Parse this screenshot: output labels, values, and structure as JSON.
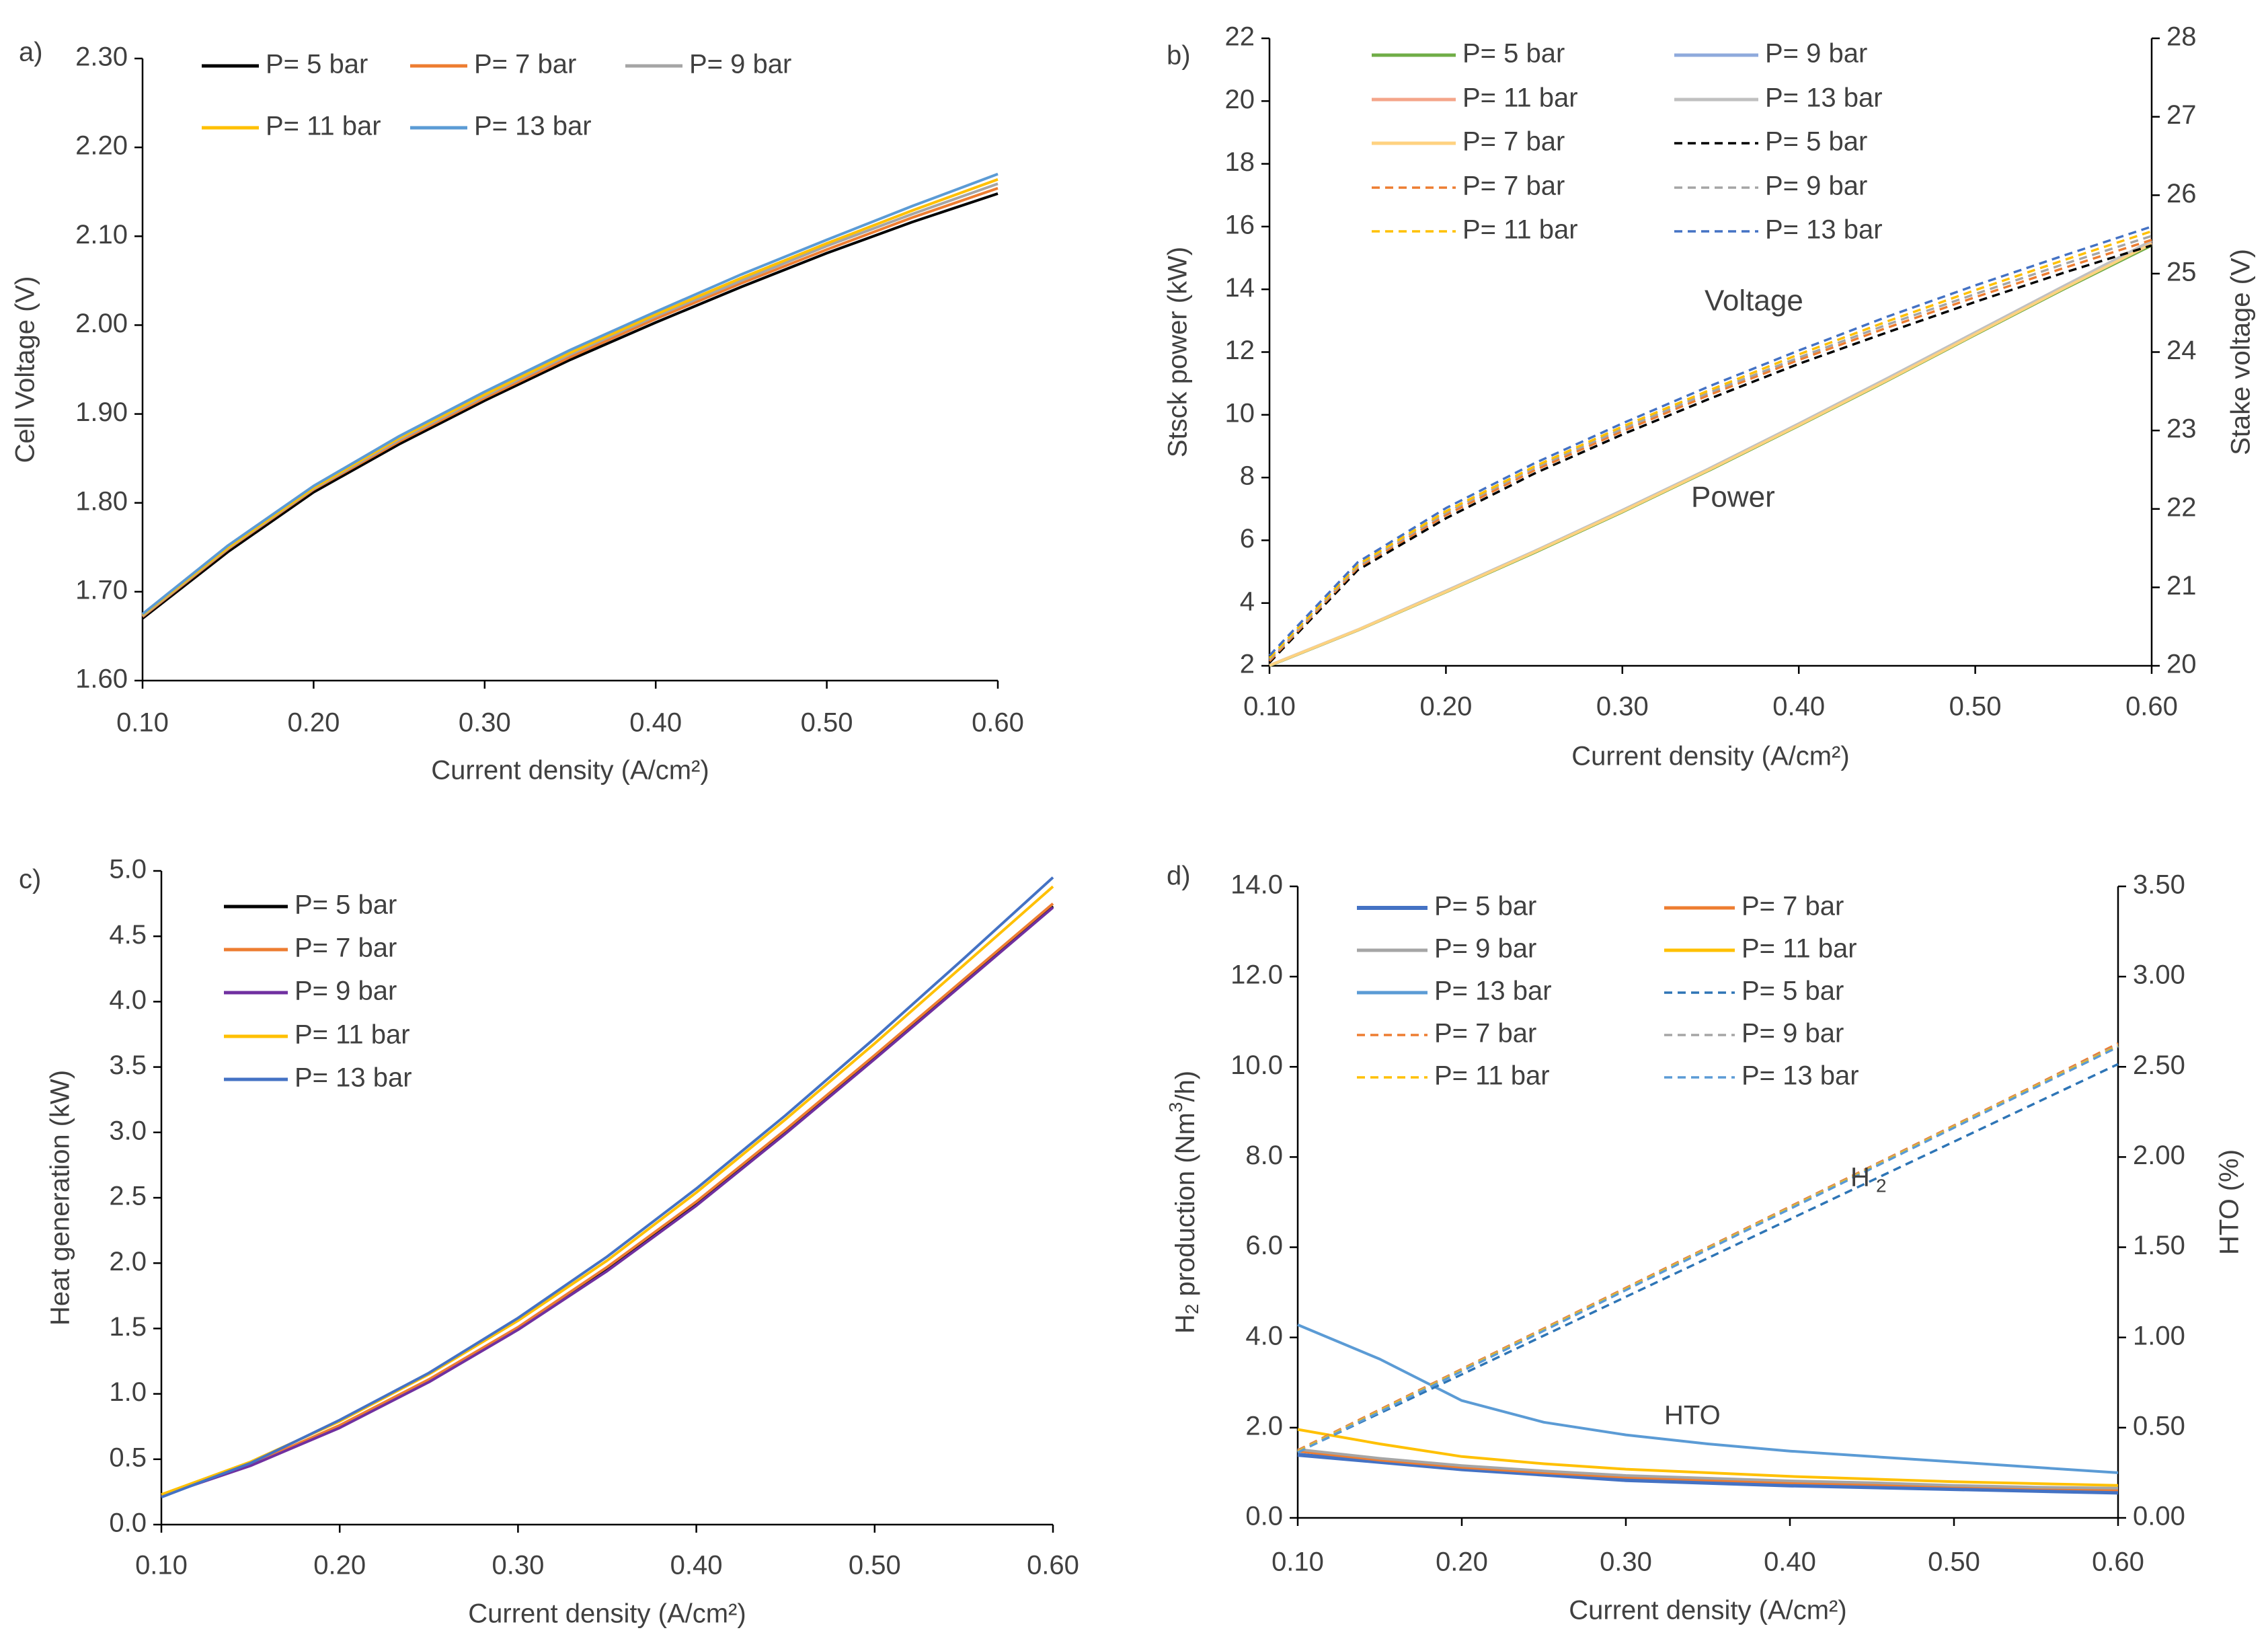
{
  "chart_data": [
    {
      "panel": "a)",
      "type": "line",
      "xlabel": "Current density (A/cm²)",
      "ylabel": "Cell Voltage (V)",
      "xlim": [
        0.1,
        0.6
      ],
      "ylim": [
        1.6,
        2.3
      ],
      "x_ticks": [
        "0.10",
        "0.20",
        "0.30",
        "0.40",
        "0.50",
        "0.60"
      ],
      "y_ticks": [
        "1.60",
        "1.70",
        "1.80",
        "1.90",
        "2.00",
        "2.10",
        "2.20",
        "2.30"
      ],
      "x": [
        0.1,
        0.15,
        0.2,
        0.25,
        0.3,
        0.35,
        0.4,
        0.45,
        0.5,
        0.55,
        0.6
      ],
      "series": [
        {
          "name": "P= 5 bar",
          "color": "#000000",
          "dash": "solid",
          "values": [
            1.67,
            1.745,
            1.812,
            1.866,
            1.915,
            1.961,
            2.003,
            2.043,
            2.081,
            2.116,
            2.148
          ]
        },
        {
          "name": "P= 7 bar",
          "color": "#ed7d31",
          "dash": "solid",
          "values": [
            1.672,
            1.748,
            1.815,
            1.869,
            1.918,
            1.964,
            2.007,
            2.047,
            2.085,
            2.121,
            2.154
          ]
        },
        {
          "name": "P= 9 bar",
          "color": "#a5a5a5",
          "dash": "solid",
          "values": [
            1.673,
            1.749,
            1.816,
            1.871,
            1.92,
            1.967,
            2.01,
            2.05,
            2.089,
            2.125,
            2.159
          ]
        },
        {
          "name": "P=  11 bar",
          "color": "#ffc000",
          "dash": "solid",
          "values": [
            1.674,
            1.75,
            1.817,
            1.873,
            1.922,
            1.969,
            2.012,
            2.053,
            2.092,
            2.129,
            2.164
          ]
        },
        {
          "name": "P= 13 bar",
          "color": "#5b9bd5",
          "dash": "solid",
          "values": [
            1.675,
            1.752,
            1.819,
            1.875,
            1.925,
            1.972,
            2.015,
            2.057,
            2.096,
            2.134,
            2.17
          ]
        }
      ]
    },
    {
      "panel": "b)",
      "type": "line",
      "xlabel": "Current density (A/cm²)",
      "ylabel": "Stsck power (kW)",
      "ylabel_right": "Stake voltage (V)",
      "xlim": [
        0.1,
        0.6
      ],
      "ylim": [
        2,
        22
      ],
      "ylim_right": [
        20,
        28
      ],
      "x_ticks": [
        "0.10",
        "0.20",
        "0.30",
        "0.40",
        "0.50",
        "0.60"
      ],
      "y_ticks": [
        "2",
        "4",
        "6",
        "8",
        "10",
        "12",
        "14",
        "16",
        "18",
        "20",
        "22"
      ],
      "y_ticks_right": [
        "20",
        "21",
        "22",
        "23",
        "24",
        "25",
        "26",
        "27",
        "28"
      ],
      "annotations": [
        "Voltage",
        "Power"
      ],
      "x": [
        0.1,
        0.15,
        0.2,
        0.25,
        0.3,
        0.35,
        0.4,
        0.45,
        0.5,
        0.55,
        0.6
      ],
      "series": [
        {
          "name": "P= 5 bar",
          "color": "#70ad47",
          "dash": "solid",
          "axis": "left",
          "values": [
            2.0,
            3.13,
            4.35,
            5.6,
            6.9,
            8.25,
            9.65,
            11.08,
            12.55,
            14.0,
            15.4
          ]
        },
        {
          "name": "P= 9 bar",
          "color": "#8faadc",
          "dash": "solid",
          "axis": "left",
          "values": [
            2.01,
            3.14,
            4.37,
            5.63,
            6.93,
            8.28,
            9.68,
            11.12,
            12.58,
            14.05,
            15.48
          ]
        },
        {
          "name": "P=  11 bar",
          "color": "#f4a58a",
          "dash": "solid",
          "axis": "left",
          "values": [
            2.01,
            3.14,
            4.37,
            5.63,
            6.94,
            8.29,
            9.69,
            11.13,
            12.6,
            14.07,
            15.5
          ]
        },
        {
          "name": "P= 13 bar",
          "color": "#c0c0c0",
          "dash": "solid",
          "axis": "left",
          "values": [
            2.02,
            3.15,
            4.39,
            5.65,
            6.96,
            8.31,
            9.72,
            11.16,
            12.63,
            14.1,
            15.55
          ]
        },
        {
          "name": "P= 7 bar",
          "color": "#ffd280",
          "dash": "solid",
          "axis": "left",
          "values": [
            2.01,
            3.14,
            4.36,
            5.62,
            6.92,
            8.27,
            9.67,
            11.1,
            12.57,
            14.03,
            15.45
          ]
        },
        {
          "name": "P= 5 bar",
          "color": "#000000",
          "dash": "dashed",
          "axis": "right",
          "values": [
            20.04,
            21.22,
            21.88,
            22.45,
            22.95,
            23.41,
            23.85,
            24.25,
            24.64,
            25.01,
            25.36
          ]
        },
        {
          "name": "P= 7 bar",
          "color": "#ed7d31",
          "dash": "dashed",
          "axis": "right",
          "values": [
            20.06,
            21.25,
            21.92,
            22.49,
            22.99,
            23.46,
            23.9,
            24.31,
            24.7,
            25.07,
            25.43
          ]
        },
        {
          "name": "P= 9 bar",
          "color": "#a5a5a5",
          "dash": "dashed",
          "axis": "right",
          "values": [
            20.08,
            21.27,
            21.95,
            22.52,
            23.02,
            23.49,
            23.93,
            24.35,
            24.74,
            25.12,
            25.48
          ]
        },
        {
          "name": "P=  11 bar",
          "color": "#ffc000",
          "dash": "dashed",
          "axis": "right",
          "values": [
            20.1,
            21.29,
            21.97,
            22.54,
            23.05,
            23.52,
            23.97,
            24.39,
            24.79,
            25.17,
            25.54
          ]
        },
        {
          "name": "P= 13 bar",
          "color": "#4472c4",
          "dash": "dashed",
          "axis": "right",
          "values": [
            20.13,
            21.32,
            22.01,
            22.58,
            23.09,
            23.57,
            24.02,
            24.45,
            24.85,
            25.23,
            25.6
          ]
        }
      ]
    },
    {
      "panel": "c)",
      "type": "line",
      "xlabel": "Current density (A/cm²)",
      "ylabel": "Heat generation  (kW)",
      "xlim": [
        0.1,
        0.6
      ],
      "ylim": [
        0.0,
        5.0
      ],
      "x_ticks": [
        "0.10",
        "0.20",
        "0.30",
        "0.40",
        "0.50",
        "0.60"
      ],
      "y_ticks": [
        "0.0",
        "0.5",
        "1.0",
        "1.5",
        "2.0",
        "2.5",
        "3.0",
        "3.5",
        "4.0",
        "4.5",
        "5.0"
      ],
      "x": [
        0.1,
        0.15,
        0.2,
        0.25,
        0.3,
        0.35,
        0.4,
        0.45,
        0.5,
        0.55,
        0.6
      ],
      "series": [
        {
          "name": "P= 5 bar",
          "color": "#000000",
          "dash": "solid",
          "values": [
            0.22,
            0.46,
            0.75,
            1.1,
            1.5,
            1.96,
            2.46,
            3.01,
            3.58,
            4.16,
            4.73
          ]
        },
        {
          "name": "P= 7 bar",
          "color": "#ed7d31",
          "dash": "solid",
          "values": [
            0.22,
            0.46,
            0.76,
            1.11,
            1.51,
            1.97,
            2.47,
            3.02,
            3.59,
            4.17,
            4.75
          ]
        },
        {
          "name": "P= 9 bar",
          "color": "#7030a0",
          "dash": "solid",
          "values": [
            0.22,
            0.45,
            0.74,
            1.09,
            1.49,
            1.94,
            2.44,
            2.99,
            3.56,
            4.14,
            4.72
          ]
        },
        {
          "name": "P=  11 bar",
          "color": "#ffc000",
          "dash": "solid",
          "values": [
            0.23,
            0.48,
            0.79,
            1.15,
            1.56,
            2.02,
            2.54,
            3.1,
            3.68,
            4.28,
            4.88
          ]
        },
        {
          "name": "P= 13 bar",
          "color": "#4472c4",
          "dash": "solid",
          "values": [
            0.21,
            0.47,
            0.8,
            1.16,
            1.58,
            2.05,
            2.57,
            3.13,
            3.72,
            4.33,
            4.95
          ]
        }
      ]
    },
    {
      "panel": "d)",
      "type": "line",
      "xlabel": "Current density (A/cm²)",
      "ylabel": "H2 production (Nm3/h)",
      "ylabel_right": "HTO (%)",
      "xlim": [
        0.1,
        0.6
      ],
      "ylim": [
        0.0,
        14.0
      ],
      "ylim_right": [
        0.0,
        3.5
      ],
      "x_ticks": [
        "0.10",
        "0.20",
        "0.30",
        "0.40",
        "0.50",
        "0.60"
      ],
      "y_ticks": [
        "0.0",
        "2.0",
        "4.0",
        "6.0",
        "8.0",
        "10.0",
        "12.0",
        "14.0"
      ],
      "y_ticks_right": [
        "0.00",
        "0.50",
        "1.00",
        "1.50",
        "2.00",
        "2.50",
        "3.00",
        "3.50"
      ],
      "annotations": [
        "H",
        "2",
        "HTO"
      ],
      "x": [
        0.1,
        0.15,
        0.2,
        0.25,
        0.3,
        0.35,
        0.4,
        0.45,
        0.5,
        0.55,
        0.6
      ],
      "series": [
        {
          "name": "P= 5 bar",
          "color": "#4472c4",
          "dash": "solid",
          "width": "thick",
          "axis": "right",
          "values": [
            0.35,
            0.31,
            0.27,
            0.24,
            0.21,
            0.195,
            0.18,
            0.17,
            0.16,
            0.15,
            0.14
          ]
        },
        {
          "name": "P= 7 bar",
          "color": "#ed7d31",
          "dash": "solid",
          "axis": "right",
          "values": [
            0.37,
            0.32,
            0.28,
            0.25,
            0.225,
            0.21,
            0.195,
            0.185,
            0.175,
            0.165,
            0.155
          ]
        },
        {
          "name": "P= 9 bar",
          "color": "#a5a5a5",
          "dash": "solid",
          "axis": "right",
          "values": [
            0.38,
            0.33,
            0.29,
            0.26,
            0.235,
            0.22,
            0.205,
            0.195,
            0.18,
            0.17,
            0.165
          ]
        },
        {
          "name": "P=  11 bar",
          "color": "#ffc000",
          "dash": "solid",
          "axis": "right",
          "values": [
            0.49,
            0.41,
            0.34,
            0.3,
            0.27,
            0.25,
            0.23,
            0.215,
            0.2,
            0.19,
            0.18
          ]
        },
        {
          "name": "P= 13 bar",
          "color": "#5b9bd5",
          "dash": "solid",
          "axis": "right",
          "values": [
            1.07,
            0.88,
            0.65,
            0.53,
            0.46,
            0.41,
            0.37,
            0.34,
            0.31,
            0.28,
            0.25
          ]
        },
        {
          "name": "P= 5 bar",
          "color": "#2e75b6",
          "dash": "dashed",
          "axis": "left",
          "values": [
            1.46,
            2.32,
            3.18,
            4.04,
            4.9,
            5.76,
            6.62,
            7.48,
            8.34,
            9.2,
            10.06
          ]
        },
        {
          "name": "P= 7 bar",
          "color": "#ed7d31",
          "dash": "dashed",
          "axis": "left",
          "values": [
            1.5,
            2.4,
            3.3,
            4.2,
            5.1,
            6.0,
            6.9,
            7.8,
            8.7,
            9.6,
            10.52
          ]
        },
        {
          "name": "P= 9 bar",
          "color": "#a5a5a5",
          "dash": "dashed",
          "axis": "left",
          "values": [
            1.48,
            2.38,
            3.28,
            4.18,
            5.08,
            5.98,
            6.88,
            7.78,
            8.68,
            9.58,
            10.48
          ]
        },
        {
          "name": "P=  11 bar",
          "color": "#ffc000",
          "dash": "dashed",
          "axis": "left",
          "values": [
            1.47,
            2.37,
            3.27,
            4.17,
            5.07,
            5.97,
            6.87,
            7.77,
            8.67,
            9.57,
            10.46
          ]
        },
        {
          "name": "P= 13 bar",
          "color": "#5b9bd5",
          "dash": "dashed",
          "axis": "left",
          "values": [
            1.45,
            2.35,
            3.25,
            4.15,
            5.05,
            5.95,
            6.85,
            7.75,
            8.65,
            9.55,
            10.44
          ]
        }
      ]
    }
  ]
}
